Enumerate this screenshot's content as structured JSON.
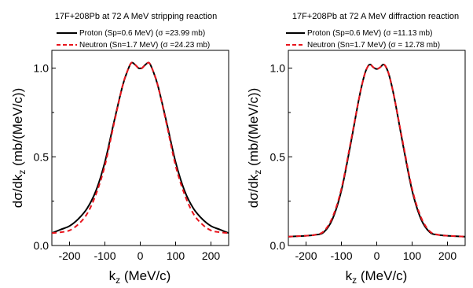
{
  "chart_data": [
    {
      "type": "line",
      "title": "17F+208Pb at 72 A MeV stripping reaction",
      "xlabel": "k_z (MeV/c)",
      "ylabel": "dσ/dk_z (mb/(MeV/c))",
      "xlim": [
        -250,
        250
      ],
      "ylim": [
        0,
        1.1
      ],
      "xticks": [
        -200,
        -100,
        0,
        100,
        200
      ],
      "yticks": [
        0.0,
        0.5,
        1.0
      ],
      "legend_position": "top",
      "series": [
        {
          "name": "Proton (Sp=0.6 MeV)",
          "sigma": "(σ =23.99 mb)",
          "color": "#000000",
          "dash": "solid",
          "x": [
            -250,
            -225,
            -200,
            -175,
            -150,
            -125,
            -100,
            -75,
            -50,
            -35,
            -25,
            -15,
            -5,
            0,
            5,
            15,
            25,
            35,
            50,
            75,
            100,
            125,
            150,
            175,
            200,
            225,
            250
          ],
          "y": [
            0.07,
            0.09,
            0.11,
            0.15,
            0.21,
            0.31,
            0.47,
            0.69,
            0.9,
            0.99,
            1.03,
            1.02,
            1.0,
            0.999,
            1.0,
            1.02,
            1.03,
            0.99,
            0.9,
            0.69,
            0.47,
            0.31,
            0.21,
            0.15,
            0.11,
            0.09,
            0.07
          ]
        },
        {
          "name": "Neutron (Sn=1.7 MeV)",
          "sigma": "(σ =24.23 mb)",
          "color": "#e8141c",
          "dash": "dashed",
          "x": [
            -250,
            -225,
            -200,
            -175,
            -150,
            -125,
            -100,
            -75,
            -50,
            -35,
            -25,
            -15,
            -5,
            0,
            5,
            15,
            25,
            35,
            50,
            75,
            100,
            125,
            150,
            175,
            200,
            225,
            250
          ],
          "y": [
            0.07,
            0.075,
            0.085,
            0.12,
            0.18,
            0.29,
            0.45,
            0.68,
            0.9,
            0.99,
            1.03,
            1.02,
            1.0,
            0.999,
            1.0,
            1.02,
            1.03,
            0.99,
            0.9,
            0.68,
            0.45,
            0.29,
            0.18,
            0.12,
            0.085,
            0.075,
            0.07
          ]
        }
      ]
    },
    {
      "type": "line",
      "title": "17F+208Pb at 72 A MeV diffraction reaction",
      "xlabel": "k_z (MeV/c)",
      "ylabel": "dσ/dk_z (mb/(MeV/c))",
      "xlim": [
        -250,
        250
      ],
      "ylim": [
        0,
        1.1
      ],
      "xticks": [
        -200,
        -100,
        0,
        100,
        200
      ],
      "yticks": [
        0.0,
        0.5,
        1.0
      ],
      "legend_position": "top",
      "series": [
        {
          "name": "Proton (Sp=0.6 MeV)",
          "sigma": "(σ =11.13 mb)",
          "color": "#000000",
          "dash": "solid",
          "x": [
            -250,
            -200,
            -175,
            -150,
            -125,
            -100,
            -75,
            -50,
            -35,
            -25,
            -18,
            -10,
            0,
            10,
            18,
            25,
            35,
            50,
            75,
            100,
            125,
            150,
            175,
            200,
            250
          ],
          "y": [
            0.05,
            0.055,
            0.06,
            0.075,
            0.15,
            0.31,
            0.56,
            0.83,
            0.96,
            1.01,
            1.02,
            1.005,
            0.995,
            1.005,
            1.02,
            1.01,
            0.96,
            0.83,
            0.56,
            0.31,
            0.15,
            0.075,
            0.06,
            0.055,
            0.05
          ]
        },
        {
          "name": "Neutron (Sn=1.7 MeV)",
          "sigma": "(σ = 12.78 mb)",
          "color": "#e8141c",
          "dash": "dashed",
          "x": [
            -250,
            -200,
            -175,
            -150,
            -125,
            -100,
            -75,
            -50,
            -35,
            -25,
            -18,
            -10,
            0,
            10,
            18,
            25,
            35,
            50,
            75,
            100,
            125,
            150,
            175,
            200,
            250
          ],
          "y": [
            0.05,
            0.055,
            0.06,
            0.08,
            0.16,
            0.32,
            0.57,
            0.83,
            0.96,
            1.01,
            1.02,
            1.005,
            0.995,
            1.005,
            1.02,
            1.01,
            0.96,
            0.83,
            0.57,
            0.32,
            0.16,
            0.08,
            0.06,
            0.055,
            0.05
          ]
        }
      ]
    }
  ]
}
